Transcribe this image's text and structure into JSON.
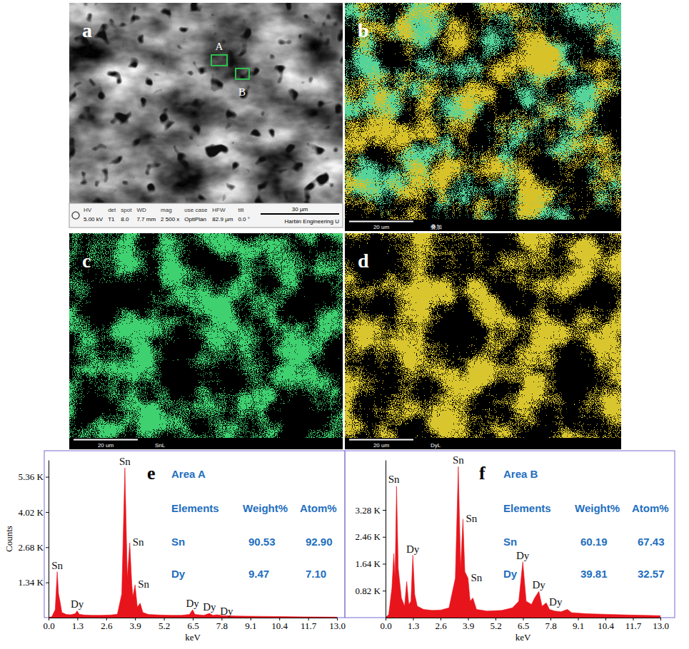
{
  "panels": {
    "a": {
      "type": "sem_image",
      "letter": "a",
      "areas": [
        {
          "label": "A"
        },
        {
          "label": "B"
        }
      ],
      "databar": [
        {
          "label": "HV",
          "value": "5.00 kV"
        },
        {
          "label": "det",
          "value": "T1"
        },
        {
          "label": "spot",
          "value": "8.0"
        },
        {
          "label": "WD",
          "value": "7.7 mm"
        },
        {
          "label": "mag",
          "value": "2 500 x"
        },
        {
          "label": "use case",
          "value": "OptiPlan"
        },
        {
          "label": "HFW",
          "value": "82.9 µm"
        },
        {
          "label": "tilt",
          "value": "0.0 °"
        }
      ],
      "scale_bar": "30 µm",
      "institution": "Harbin Engineering U"
    },
    "b": {
      "type": "eds_map",
      "letter": "b",
      "colors": [
        "#55d49a",
        "#d8c22a"
      ],
      "scale_bar": "20 um",
      "map_label": "叠加"
    },
    "c": {
      "type": "eds_map",
      "letter": "c",
      "color": "#3fd070",
      "scale_bar": "20 um",
      "map_label": "SnL"
    },
    "d": {
      "type": "eds_map",
      "letter": "d",
      "color": "#d9c62e",
      "scale_bar": "20 um",
      "map_label": "DyL"
    }
  },
  "chart_data": [
    {
      "type": "area",
      "letter": "e",
      "color": "#e8141c",
      "x_label": "keV",
      "y_label": "Counts",
      "x": [
        0,
        0.15,
        0.3,
        0.39,
        0.45,
        0.52,
        0.6,
        0.8,
        1.0,
        1.2,
        1.29,
        1.38,
        1.6,
        2.0,
        2.4,
        2.8,
        3.1,
        3.3,
        3.44,
        3.55,
        3.66,
        3.75,
        3.8,
        3.9,
        4.0,
        4.13,
        4.25,
        4.5,
        5.0,
        5.5,
        6.0,
        6.35,
        6.49,
        6.6,
        7.0,
        7.25,
        7.4,
        7.6,
        7.8,
        8.5,
        9.5,
        10.5,
        11.5,
        13.0
      ],
      "values": [
        0,
        40,
        300,
        1750,
        900,
        600,
        200,
        120,
        110,
        150,
        260,
        130,
        100,
        90,
        90,
        100,
        130,
        900,
        5700,
        1500,
        2850,
        1300,
        800,
        1250,
        400,
        550,
        200,
        120,
        100,
        90,
        90,
        120,
        300,
        120,
        90,
        160,
        90,
        110,
        80,
        60,
        50,
        40,
        30,
        20
      ],
      "xlim": [
        0,
        13
      ],
      "xticks": [
        {
          "value": 0,
          "label": "0.0"
        },
        1.3,
        2.6,
        3.9,
        5.2,
        6.5,
        7.8,
        9.1,
        10.4,
        11.7,
        {
          "value": 13,
          "label": "13.0"
        }
      ],
      "ylim": [
        0,
        6000
      ],
      "yticks": [
        {
          "value": 1340,
          "label": "1.34 K"
        },
        {
          "value": 2680,
          "label": "2.68 K"
        },
        {
          "value": 4020,
          "label": "4.02 K"
        },
        {
          "value": 5360,
          "label": "5.36 K"
        }
      ],
      "annotations": [
        {
          "text": "Sn",
          "x": 0.39
        },
        {
          "text": "Dy",
          "x": 1.29
        },
        {
          "text": "Sn",
          "x": 3.44
        },
        {
          "text": "Sn",
          "x": 3.66
        },
        {
          "text": "Sn",
          "x": 3.9
        },
        {
          "text": "Dy",
          "x": 6.49
        },
        {
          "text": "Dy",
          "x": 7.25
        },
        {
          "text": "Dy",
          "x": 7.6
        }
      ],
      "table": {
        "title": "Area A",
        "header": [
          "Elements",
          "Weight%",
          "Atom%"
        ],
        "rows": [
          [
            "Sn",
            "90.53",
            "92.90"
          ],
          [
            "Dy",
            "9.47",
            "7.10"
          ]
        ]
      }
    },
    {
      "type": "area",
      "letter": "f",
      "color": "#e8141c",
      "x_label": "keV",
      "x": [
        0,
        0.15,
        0.3,
        0.39,
        0.45,
        0.52,
        0.6,
        0.75,
        0.9,
        1.0,
        1.1,
        1.2,
        1.29,
        1.38,
        1.5,
        1.8,
        2.2,
        2.6,
        3.0,
        3.3,
        3.44,
        3.55,
        3.66,
        3.75,
        3.9,
        4.0,
        4.13,
        4.3,
        4.8,
        5.5,
        6.0,
        6.3,
        6.49,
        6.65,
        6.9,
        7.05,
        7.25,
        7.4,
        7.6,
        7.75,
        8.0,
        8.3,
        8.6,
        8.8,
        9.5,
        10.5,
        11.5,
        13.0
      ],
      "values": [
        0,
        100,
        900,
        1950,
        1200,
        4000,
        1500,
        600,
        350,
        1100,
        400,
        500,
        1900,
        700,
        350,
        250,
        220,
        230,
        300,
        1200,
        4600,
        1500,
        3000,
        1400,
        1200,
        500,
        600,
        250,
        200,
        220,
        300,
        500,
        1700,
        500,
        400,
        600,
        800,
        350,
        450,
        250,
        200,
        180,
        250,
        150,
        120,
        100,
        80,
        60
      ],
      "xlim": [
        0,
        13
      ],
      "xticks": [
        {
          "value": 0,
          "label": "0.0"
        },
        1.3,
        2.6,
        3.9,
        5.2,
        6.5,
        7.8,
        9.1,
        10.4,
        11.7,
        {
          "value": 13,
          "label": "13.0"
        }
      ],
      "ylim": [
        0,
        4800
      ],
      "yticks": [
        {
          "value": 820,
          "label": "0.82 K"
        },
        {
          "value": 1640,
          "label": "1.64 K"
        },
        {
          "value": 2460,
          "label": "2.46 K"
        },
        {
          "value": 3280,
          "label": "3.28 K"
        }
      ],
      "annotations": [
        {
          "text": "Sn",
          "x": 0.39
        },
        {
          "text": "Dy",
          "x": 1.29
        },
        {
          "text": "Sn",
          "x": 3.44
        },
        {
          "text": "Sn",
          "x": 3.66
        },
        {
          "text": "Sn",
          "x": 3.9
        },
        {
          "text": "Dy",
          "x": 6.49
        },
        {
          "text": "Dy",
          "x": 7.25
        },
        {
          "text": "Dy",
          "x": 7.6
        }
      ],
      "table": {
        "title": "Area B",
        "header": [
          "Elements",
          "Weight%",
          "Atom%"
        ],
        "rows": [
          [
            "Sn",
            "60.19",
            "67.43"
          ],
          [
            "Dy",
            "39.81",
            "32.57"
          ]
        ]
      }
    }
  ]
}
